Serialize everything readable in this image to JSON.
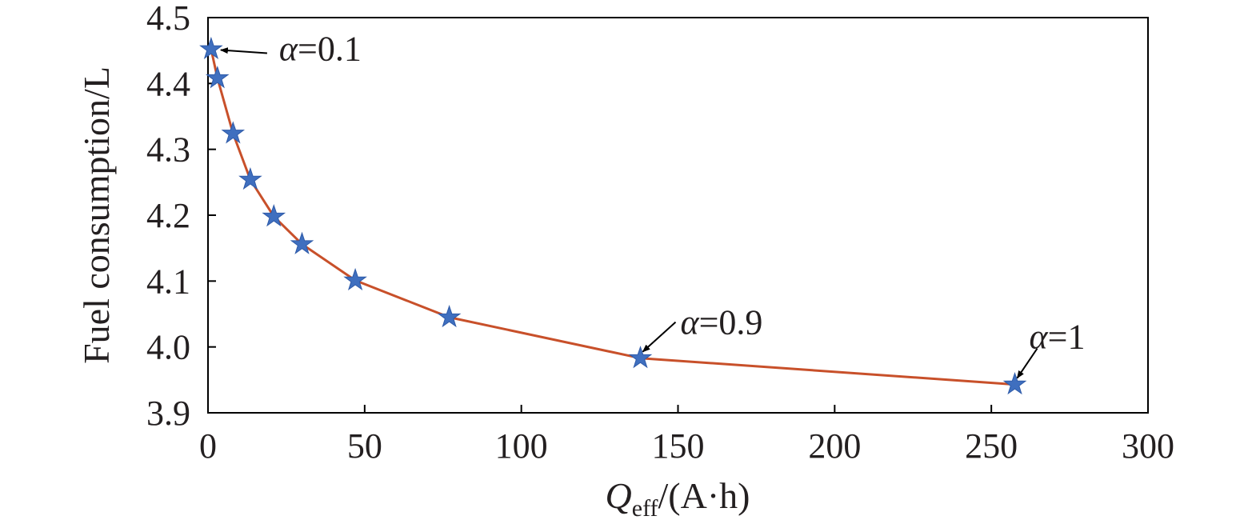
{
  "chart_data": {
    "type": "line",
    "title": "",
    "xlabel_symbol": "Q",
    "xlabel_subscript": "eff",
    "xlabel_unit": "/(A·h)",
    "ylabel": "Fuel consumption/L",
    "xlim": [
      0,
      300
    ],
    "ylim": [
      3.9,
      4.5
    ],
    "xticks": [
      0,
      50,
      100,
      150,
      200,
      250,
      300
    ],
    "yticks": [
      3.9,
      4.0,
      4.1,
      4.2,
      4.3,
      4.4,
      4.5
    ],
    "xtick_labels": [
      "0",
      "50",
      "100",
      "150",
      "200",
      "250",
      "300"
    ],
    "ytick_labels": [
      "3.9",
      "4.0",
      "4.1",
      "4.2",
      "4.3",
      "4.4",
      "4.5"
    ],
    "grid": false,
    "legend": "none",
    "series": [
      {
        "line_color": "#c8502a",
        "marker": "star",
        "marker_color": "#3f6fbf",
        "x": [
          1,
          3,
          8,
          13.5,
          21,
          30,
          47,
          77,
          138,
          257.5
        ],
        "y": [
          4.452,
          4.408,
          4.324,
          4.254,
          4.198,
          4.156,
          4.101,
          4.045,
          3.983,
          3.943
        ]
      }
    ],
    "annotations": [
      {
        "symbol": "α",
        "text": "=0.1",
        "x": 1,
        "y": 4.452
      },
      {
        "symbol": "α",
        "text": "=0.9",
        "x": 138,
        "y": 3.983
      },
      {
        "symbol": "α",
        "text": "=1",
        "x": 257.5,
        "y": 3.943
      }
    ]
  }
}
